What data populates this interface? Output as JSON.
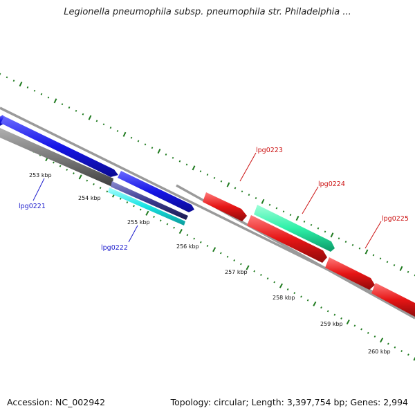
{
  "title": "Legionella pneumophila subsp. pneumophila str. Philadelphia ...",
  "footer": {
    "accession": "Accession: NC_002942",
    "summary": "Topology: circular; Length: 3,397,754 bp; Genes: 2,994"
  },
  "colors": {
    "backbone": "#8c8c8c",
    "ticks": "#1e7a1e",
    "gene_blue": "#1515e6",
    "gene_gray": "#6e6e6e",
    "gene_navy": "#3a3a8e",
    "gene_cyan": "#17e3e3",
    "gene_red": "#e61515",
    "gene_aqua": "#1ee8a0",
    "label_blue": "#1a1acc",
    "label_red": "#cc1111"
  },
  "kbp_labels": [
    "253 kbp",
    "254 kbp",
    "255 kbp",
    "256 kbp",
    "257 kbp",
    "258 kbp",
    "259 kbp",
    "260 kbp"
  ],
  "genes": [
    {
      "label": "lpg0221",
      "color": "blue",
      "strand": "forward"
    },
    {
      "label": "lpg0222",
      "color": "navy",
      "strand": "reverse"
    },
    {
      "label": "lpg0223",
      "color": "red",
      "strand": "forward"
    },
    {
      "label": "lpg0224",
      "color": "aqua",
      "strand": "forward"
    },
    {
      "label": "lpg0225",
      "color": "red",
      "strand": "forward"
    }
  ]
}
